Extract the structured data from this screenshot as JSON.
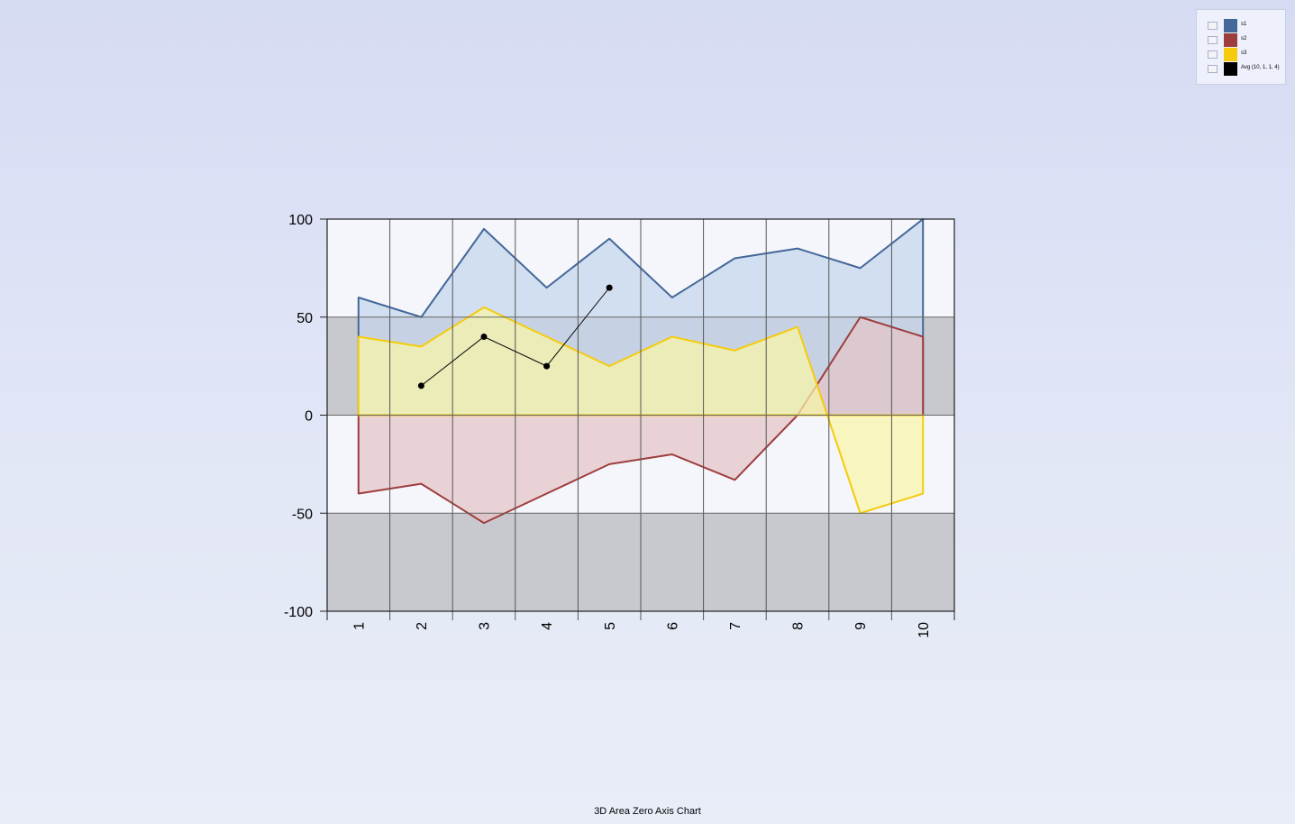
{
  "chart_data": {
    "type": "area",
    "title": "3D Area Zero Axis Chart",
    "xlabel": "",
    "ylabel": "",
    "categories": [
      "1",
      "2",
      "3",
      "4",
      "5",
      "6",
      "7",
      "8",
      "9",
      "10"
    ],
    "ylim": [
      -100,
      100
    ],
    "yticks": [
      "100",
      "50",
      "0",
      "-50",
      "-100"
    ],
    "grid": true,
    "legend_position": "top-right",
    "series": [
      {
        "name": "s1",
        "type": "area",
        "color": "#44689a",
        "fill": "#c5d6ec",
        "values": [
          60,
          50,
          95,
          65,
          90,
          60,
          80,
          85,
          75,
          100
        ]
      },
      {
        "name": "s2",
        "type": "area",
        "color": "#9e3d3d",
        "fill": "#e5c3c7",
        "values": [
          -40,
          -35,
          -55,
          -40,
          -25,
          -20,
          -33,
          0,
          50,
          40
        ]
      },
      {
        "name": "s3",
        "type": "area",
        "color": "#f5cb0b",
        "fill": "#f9f5a6",
        "values": [
          40,
          35,
          55,
          40,
          25,
          40,
          33,
          45,
          -50,
          -40
        ]
      },
      {
        "name": "Avg (10, 1, 1, 4)",
        "type": "line",
        "color": "#000000",
        "x": [
          2,
          3,
          4,
          5
        ],
        "values": [
          15,
          40,
          25,
          65
        ]
      }
    ]
  }
}
